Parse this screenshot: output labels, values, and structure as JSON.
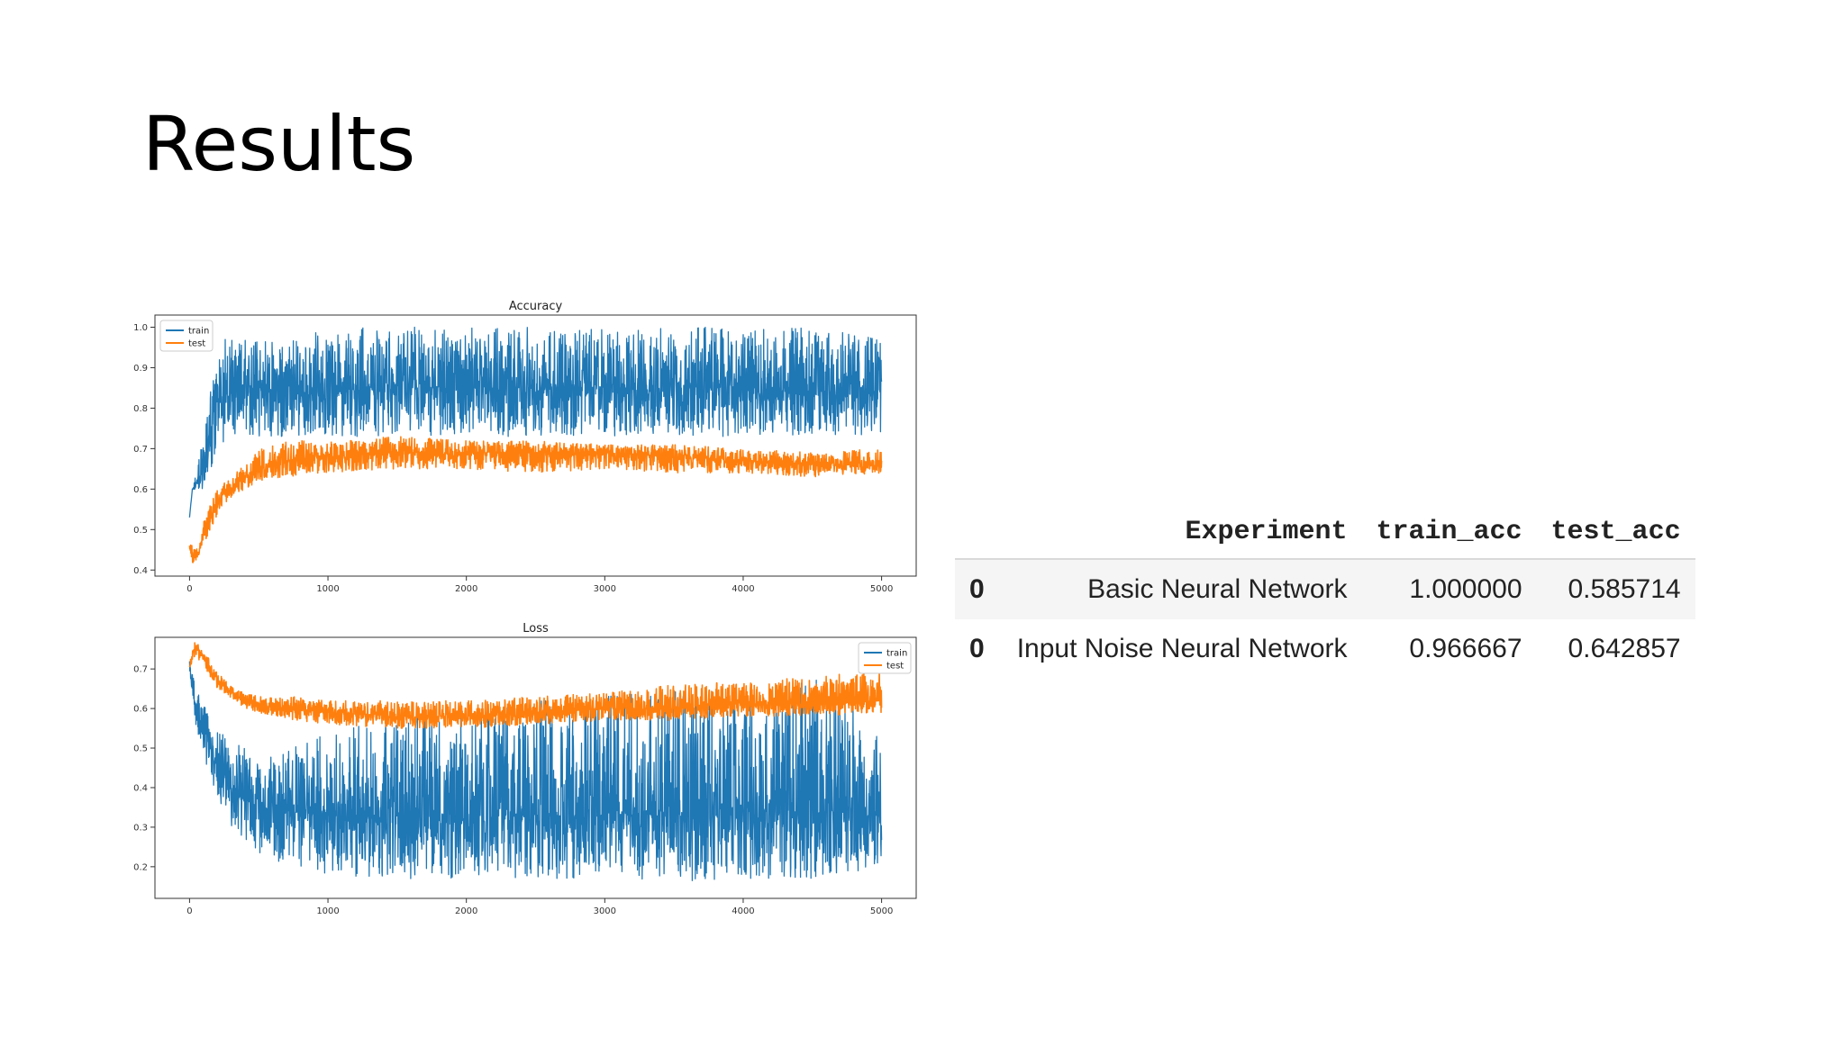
{
  "slide": {
    "title": "Results"
  },
  "chart_data": [
    {
      "type": "line",
      "title": "Accuracy",
      "xlabel": "",
      "ylabel": "",
      "xlim": [
        -250,
        5250
      ],
      "ylim": [
        0.385,
        1.03
      ],
      "xticks": [
        0,
        1000,
        2000,
        3000,
        4000,
        5000
      ],
      "yticks": [
        0.4,
        0.5,
        0.6,
        0.7,
        0.8,
        0.9,
        1.0
      ],
      "grid": false,
      "legend": "top-left",
      "series": [
        {
          "name": "train",
          "color": "#1f77b4",
          "x": [
            0,
            20,
            40,
            60,
            80,
            100,
            120,
            140,
            160,
            180,
            200,
            250,
            300,
            400,
            500,
            750,
            1000,
            1500,
            2000,
            2500,
            3000,
            3500,
            4000,
            4500,
            5000
          ],
          "y": [
            0.53,
            0.6,
            0.6,
            0.63,
            0.63,
            0.65,
            0.67,
            0.7,
            0.73,
            0.78,
            0.82,
            0.83,
            0.84,
            0.84,
            0.84,
            0.84,
            0.84,
            0.85,
            0.85,
            0.85,
            0.85,
            0.85,
            0.85,
            0.85,
            0.84
          ],
          "min": [
            0.53,
            0.6,
            0.6,
            0.6,
            0.6,
            0.6,
            0.6,
            0.6,
            0.63,
            0.67,
            0.7,
            0.7,
            0.73,
            0.73,
            0.73,
            0.73,
            0.73,
            0.73,
            0.73,
            0.73,
            0.73,
            0.73,
            0.73,
            0.73,
            0.73
          ],
          "max": [
            0.53,
            0.6,
            0.63,
            0.67,
            0.7,
            0.73,
            0.77,
            0.83,
            0.87,
            0.9,
            0.93,
            0.97,
            0.97,
            0.97,
            0.97,
            0.97,
            1.0,
            1.0,
            1.0,
            1.0,
            1.0,
            1.0,
            1.0,
            1.0,
            0.97
          ]
        },
        {
          "name": "test",
          "color": "#ff7f0e",
          "x": [
            0,
            20,
            40,
            60,
            80,
            100,
            150,
            200,
            250,
            300,
            400,
            500,
            750,
            1000,
            1500,
            2000,
            2500,
            3000,
            3500,
            4000,
            4500,
            5000
          ],
          "y": [
            0.46,
            0.44,
            0.43,
            0.44,
            0.46,
            0.49,
            0.53,
            0.56,
            0.59,
            0.6,
            0.63,
            0.65,
            0.67,
            0.68,
            0.69,
            0.69,
            0.69,
            0.69,
            0.68,
            0.67,
            0.66,
            0.66
          ],
          "min": [
            0.45,
            0.42,
            0.41,
            0.42,
            0.44,
            0.46,
            0.5,
            0.53,
            0.56,
            0.58,
            0.6,
            0.62,
            0.63,
            0.64,
            0.65,
            0.65,
            0.64,
            0.65,
            0.64,
            0.64,
            0.63,
            0.64
          ],
          "max": [
            0.47,
            0.46,
            0.45,
            0.46,
            0.48,
            0.52,
            0.56,
            0.6,
            0.62,
            0.63,
            0.66,
            0.7,
            0.72,
            0.72,
            0.73,
            0.72,
            0.72,
            0.71,
            0.71,
            0.7,
            0.69,
            0.7
          ]
        }
      ]
    },
    {
      "type": "line",
      "title": "Loss",
      "xlabel": "",
      "ylabel": "",
      "xlim": [
        -250,
        5250
      ],
      "ylim": [
        0.12,
        0.78
      ],
      "xticks": [
        0,
        1000,
        2000,
        3000,
        4000,
        5000
      ],
      "yticks": [
        0.2,
        0.3,
        0.4,
        0.5,
        0.6,
        0.7
      ],
      "grid": false,
      "legend": "top-right",
      "series": [
        {
          "name": "train",
          "color": "#1f77b4",
          "x": [
            0,
            25,
            50,
            100,
            150,
            200,
            300,
            400,
            500,
            750,
            1000,
            1500,
            2000,
            2500,
            3000,
            3500,
            4000,
            4500,
            5000
          ],
          "y": [
            0.7,
            0.64,
            0.6,
            0.55,
            0.5,
            0.45,
            0.4,
            0.37,
            0.35,
            0.34,
            0.33,
            0.33,
            0.33,
            0.33,
            0.33,
            0.33,
            0.34,
            0.34,
            0.34
          ],
          "min": [
            0.68,
            0.6,
            0.55,
            0.48,
            0.42,
            0.36,
            0.3,
            0.26,
            0.22,
            0.2,
            0.18,
            0.17,
            0.17,
            0.17,
            0.17,
            0.16,
            0.17,
            0.17,
            0.2
          ],
          "max": [
            0.72,
            0.68,
            0.66,
            0.62,
            0.58,
            0.55,
            0.52,
            0.5,
            0.48,
            0.5,
            0.55,
            0.57,
            0.6,
            0.62,
            0.63,
            0.65,
            0.65,
            0.68,
            0.6
          ]
        },
        {
          "name": "test",
          "color": "#ff7f0e",
          "x": [
            0,
            25,
            50,
            100,
            150,
            200,
            300,
            400,
            500,
            750,
            1000,
            1500,
            2000,
            2500,
            3000,
            3500,
            4000,
            4500,
            5000
          ],
          "y": [
            0.7,
            0.75,
            0.75,
            0.73,
            0.7,
            0.67,
            0.64,
            0.62,
            0.61,
            0.6,
            0.59,
            0.58,
            0.58,
            0.59,
            0.6,
            0.6,
            0.61,
            0.61,
            0.62
          ],
          "min": [
            0.69,
            0.73,
            0.73,
            0.71,
            0.68,
            0.65,
            0.62,
            0.6,
            0.59,
            0.57,
            0.56,
            0.55,
            0.55,
            0.56,
            0.57,
            0.57,
            0.58,
            0.58,
            0.59
          ],
          "max": [
            0.71,
            0.77,
            0.77,
            0.75,
            0.72,
            0.69,
            0.66,
            0.64,
            0.63,
            0.63,
            0.62,
            0.62,
            0.62,
            0.63,
            0.64,
            0.66,
            0.67,
            0.68,
            0.7
          ]
        }
      ]
    }
  ],
  "table": {
    "headers": [
      "",
      "Experiment",
      "train_acc",
      "test_acc"
    ],
    "rows": [
      [
        "0",
        "Basic Neural Network",
        "1.000000",
        "0.585714"
      ],
      [
        "0",
        "Input Noise Neural Network",
        "0.966667",
        "0.642857"
      ]
    ]
  }
}
